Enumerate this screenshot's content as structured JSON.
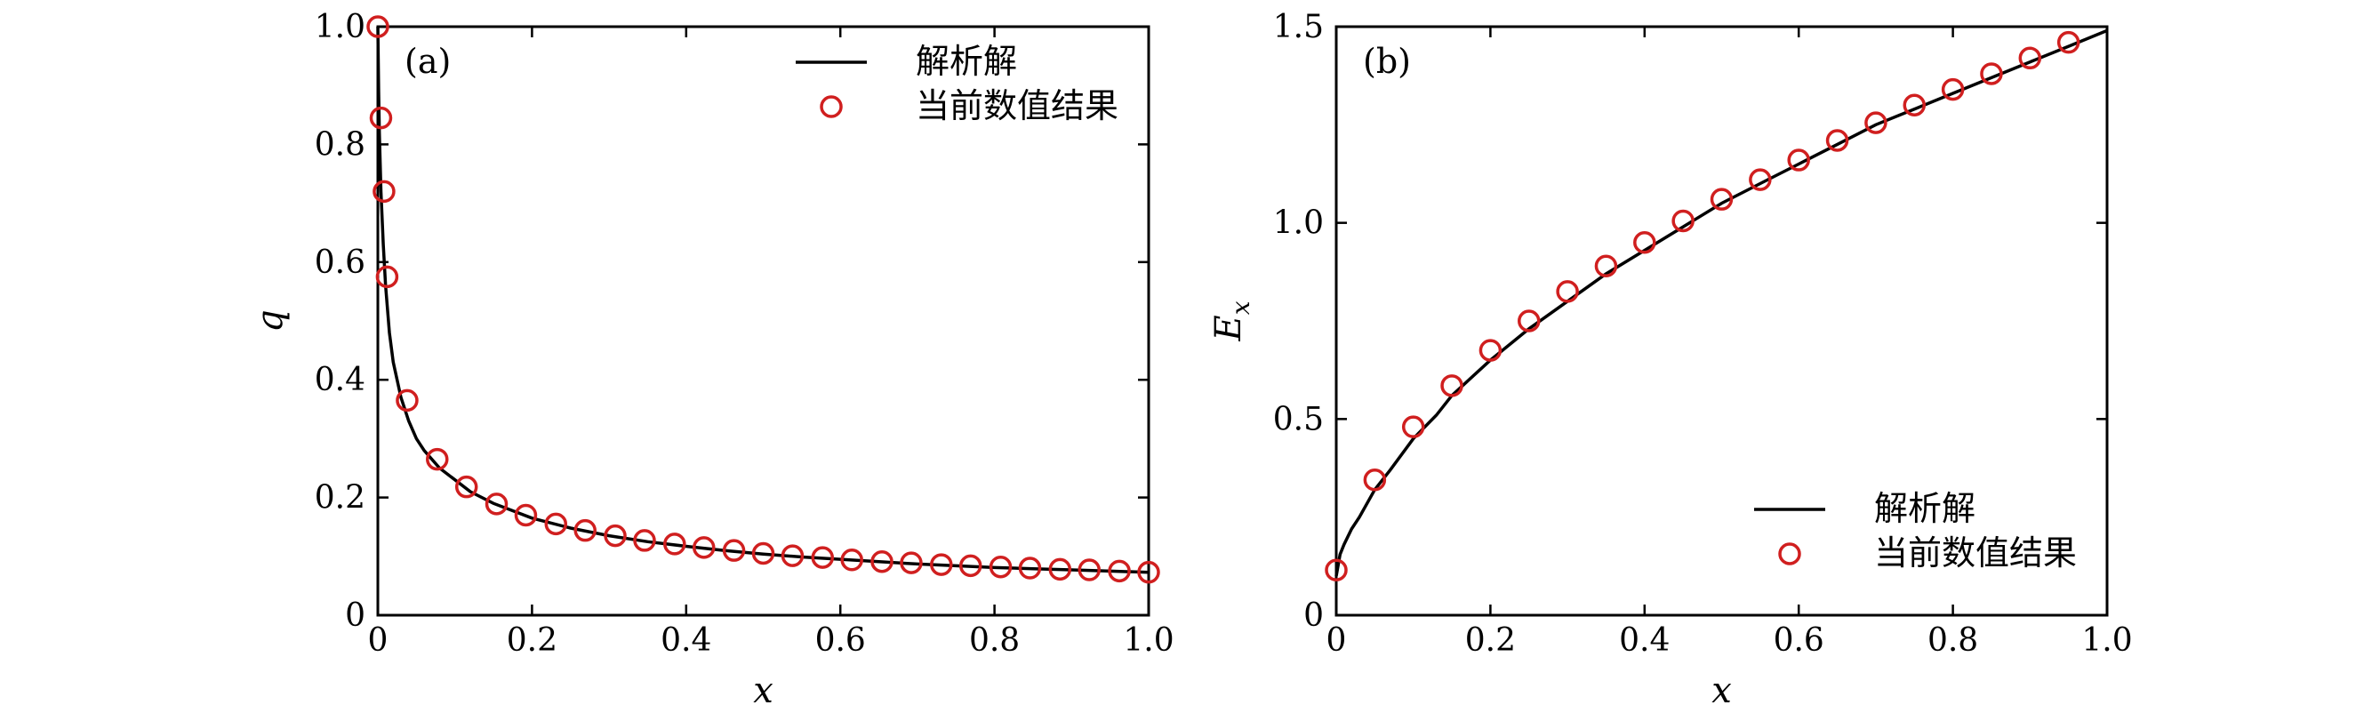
{
  "colors": {
    "analytic": "#000000",
    "numeric": "#d01f1f"
  },
  "chart_data": [
    {
      "type": "line",
      "panel_label": "(a)",
      "xlabel": "x",
      "ylabel": "q",
      "xlim": [
        0,
        1
      ],
      "ylim": [
        0,
        1
      ],
      "xticks": [
        0,
        0.2,
        0.4,
        0.6,
        0.8,
        1.0
      ],
      "xtick_labels": [
        "0",
        "0.2",
        "0.4",
        "0.6",
        "0.8",
        "1.0"
      ],
      "yticks": [
        0,
        0.2,
        0.4,
        0.6,
        0.8,
        1.0
      ],
      "ytick_labels": [
        "0",
        "0.2",
        "0.4",
        "0.6",
        "0.8",
        "1.0"
      ],
      "legend_position": "top-right",
      "series": [
        {
          "name": "解析解",
          "style": "line",
          "x": [
            0.0,
            0.001,
            0.002,
            0.004,
            0.007,
            0.01,
            0.015,
            0.02,
            0.03,
            0.04,
            0.05,
            0.06,
            0.08,
            0.1,
            0.12,
            0.15,
            0.2,
            0.25,
            0.3,
            0.35,
            0.4,
            0.45,
            0.5,
            0.55,
            0.6,
            0.65,
            0.7,
            0.75,
            0.8,
            0.85,
            0.9,
            0.95,
            1.0
          ],
          "y": [
            1.0,
            0.89,
            0.82,
            0.72,
            0.63,
            0.56,
            0.48,
            0.43,
            0.37,
            0.33,
            0.3,
            0.28,
            0.25,
            0.23,
            0.21,
            0.19,
            0.165,
            0.148,
            0.135,
            0.125,
            0.117,
            0.11,
            0.104,
            0.099,
            0.095,
            0.091,
            0.087,
            0.084,
            0.081,
            0.079,
            0.077,
            0.075,
            0.073
          ]
        },
        {
          "name": "当前数值结果",
          "style": "marker",
          "x": [
            0.0,
            0.004,
            0.008,
            0.012,
            0.038,
            0.077,
            0.115,
            0.154,
            0.192,
            0.231,
            0.269,
            0.308,
            0.346,
            0.385,
            0.423,
            0.462,
            0.5,
            0.538,
            0.577,
            0.615,
            0.654,
            0.692,
            0.731,
            0.769,
            0.808,
            0.846,
            0.885,
            0.923,
            0.962,
            1.0
          ],
          "y": [
            1.0,
            0.845,
            0.72,
            0.575,
            0.365,
            0.265,
            0.218,
            0.189,
            0.17,
            0.155,
            0.144,
            0.135,
            0.127,
            0.121,
            0.115,
            0.11,
            0.105,
            0.101,
            0.098,
            0.094,
            0.091,
            0.089,
            0.086,
            0.084,
            0.082,
            0.08,
            0.078,
            0.077,
            0.075,
            0.073
          ]
        }
      ]
    },
    {
      "type": "line",
      "panel_label": "(b)",
      "xlabel": "x",
      "ylabel": "E",
      "ylabel_subscript": "x",
      "xlim": [
        0,
        1
      ],
      "ylim": [
        0,
        1.5
      ],
      "xticks": [
        0,
        0.2,
        0.4,
        0.6,
        0.8,
        1.0
      ],
      "xtick_labels": [
        "0",
        "0.2",
        "0.4",
        "0.6",
        "0.8",
        "1.0"
      ],
      "yticks": [
        0,
        0.5,
        1.0,
        1.5
      ],
      "ytick_labels": [
        "0",
        "0.5",
        "1.0",
        "1.5"
      ],
      "legend_position": "bottom-right",
      "series": [
        {
          "name": "解析解",
          "style": "line",
          "x": [
            0.0,
            0.005,
            0.01,
            0.02,
            0.03,
            0.05,
            0.07,
            0.1,
            0.13,
            0.15,
            0.2,
            0.25,
            0.3,
            0.35,
            0.4,
            0.45,
            0.5,
            0.55,
            0.6,
            0.65,
            0.7,
            0.75,
            0.8,
            0.85,
            0.9,
            0.95,
            1.0
          ],
          "y": [
            0.1,
            0.155,
            0.18,
            0.22,
            0.25,
            0.32,
            0.37,
            0.45,
            0.51,
            0.56,
            0.65,
            0.73,
            0.8,
            0.87,
            0.93,
            0.99,
            1.05,
            1.1,
            1.15,
            1.2,
            1.25,
            1.29,
            1.33,
            1.37,
            1.41,
            1.45,
            1.49
          ]
        },
        {
          "name": "当前数值结果",
          "style": "marker",
          "x": [
            0.0,
            0.05,
            0.1,
            0.15,
            0.2,
            0.25,
            0.3,
            0.35,
            0.4,
            0.45,
            0.5,
            0.55,
            0.6,
            0.65,
            0.7,
            0.75,
            0.8,
            0.85,
            0.9,
            0.95
          ],
          "y": [
            0.115,
            0.345,
            0.48,
            0.585,
            0.675,
            0.75,
            0.825,
            0.89,
            0.95,
            1.005,
            1.06,
            1.11,
            1.16,
            1.21,
            1.255,
            1.3,
            1.34,
            1.38,
            1.42,
            1.46
          ]
        }
      ]
    }
  ]
}
